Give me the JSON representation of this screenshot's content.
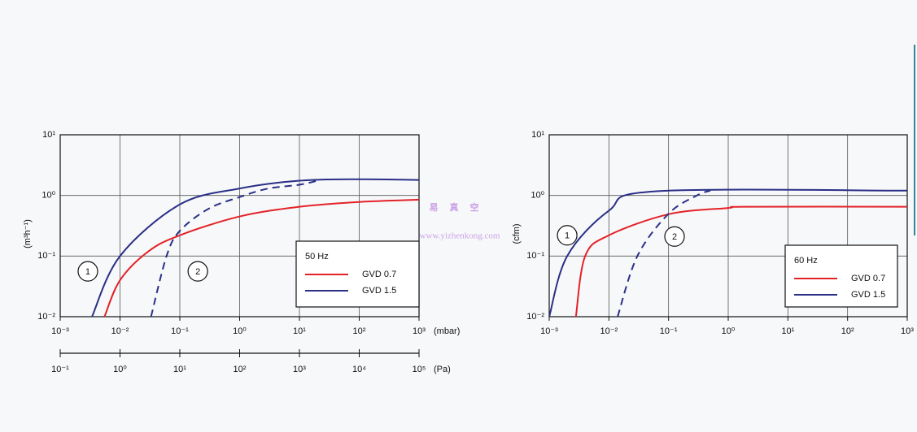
{
  "chart_data": [
    {
      "type": "line",
      "xscale": "log",
      "yscale": "log",
      "grid": true,
      "xlabel": "(mbar)",
      "ylabel": "(m³h⁻¹)",
      "xlim": [
        0.001,
        1000
      ],
      "xticks": [
        {
          "value": 0.001,
          "label": "10⁻³"
        },
        {
          "value": 0.01,
          "label": "10⁻²"
        },
        {
          "value": 0.1,
          "label": "10⁻¹"
        },
        {
          "value": 1,
          "label": "10⁰"
        },
        {
          "value": 10,
          "label": "10¹"
        },
        {
          "value": 100,
          "label": "10²"
        },
        {
          "value": 1000,
          "label": "10³"
        }
      ],
      "ylim": [
        0.01,
        10
      ],
      "yticks": [
        {
          "value": 0.01,
          "label": "10⁻²"
        },
        {
          "value": 0.1,
          "label": "10⁻¹"
        },
        {
          "value": 1,
          "label": "10⁰"
        },
        {
          "value": 10,
          "label": "10¹"
        }
      ],
      "x2label": "(Pa)",
      "x2lim": [
        0.1,
        100000
      ],
      "x2ticks": [
        {
          "value": 0.1,
          "label": "10⁻¹"
        },
        {
          "value": 1,
          "label": "10⁰"
        },
        {
          "value": 10,
          "label": "10¹"
        },
        {
          "value": 100,
          "label": "10²"
        },
        {
          "value": 1000,
          "label": "10³"
        },
        {
          "value": 10000,
          "label": "10⁴"
        },
        {
          "value": 100000,
          "label": "10⁵"
        }
      ],
      "legend_title": "50 Hz",
      "series": [
        {
          "name": "GVD 0.7",
          "color": "#e32228",
          "x": [
            0.0055,
            0.01,
            0.03,
            0.1,
            1,
            10,
            100,
            1000
          ],
          "values": [
            0.01,
            0.04,
            0.12,
            0.22,
            0.45,
            0.65,
            0.78,
            0.85
          ]
        },
        {
          "name": "GVD 1.5",
          "color": "#2a2f86",
          "x": [
            0.0034,
            0.01,
            0.1,
            1,
            10,
            100,
            1000
          ],
          "values": [
            0.01,
            0.1,
            0.71,
            1.3,
            1.75,
            1.85,
            1.8
          ]
        },
        {
          "dashed": true,
          "color": "#2a2f86",
          "x": [
            0.033,
            0.06,
            0.1,
            0.3,
            1,
            3,
            10,
            20
          ],
          "values": [
            0.01,
            0.1,
            0.26,
            0.6,
            0.94,
            1.3,
            1.5,
            1.75
          ]
        }
      ],
      "annotations": [
        {
          "text": "1",
          "x": 0.0029,
          "y": 0.056
        },
        {
          "text": "2",
          "x": 0.2,
          "y": 0.056
        }
      ]
    },
    {
      "type": "line",
      "xscale": "log",
      "yscale": "log",
      "grid": true,
      "ylabel": "(cfm)",
      "xlim": [
        0.001,
        1000
      ],
      "xticks": [
        {
          "value": 0.001,
          "label": "10⁻³"
        },
        {
          "value": 0.01,
          "label": "10⁻²"
        },
        {
          "value": 0.1,
          "label": "10⁻¹"
        },
        {
          "value": 1,
          "label": "10⁰"
        },
        {
          "value": 10,
          "label": "10¹"
        },
        {
          "value": 100,
          "label": "10²"
        },
        {
          "value": 1000,
          "label": "10³"
        }
      ],
      "ylim": [
        0.01,
        10
      ],
      "yticks": [
        {
          "value": 0.01,
          "label": "10⁻²"
        },
        {
          "value": 0.1,
          "label": "10⁻¹"
        },
        {
          "value": 1,
          "label": "10⁰"
        },
        {
          "value": 10,
          "label": "10¹"
        }
      ],
      "legend_title": "60 Hz",
      "series": [
        {
          "name": "GVD 0.7",
          "color": "#e32228",
          "x": [
            0.0028,
            0.004,
            0.01,
            0.1,
            1,
            2,
            1000
          ],
          "values": [
            0.01,
            0.1,
            0.22,
            0.49,
            0.62,
            0.65,
            0.65
          ]
        },
        {
          "name": "GVD 1.5",
          "color": "#2a2f86",
          "x": [
            0.001,
            0.002,
            0.01,
            0.06,
            1000
          ],
          "values": [
            0.01,
            0.1,
            0.56,
            1.17,
            1.2
          ]
        },
        {
          "dashed": true,
          "color": "#2a2f86",
          "x": [
            0.014,
            0.03,
            0.1,
            0.3,
            0.5
          ],
          "values": [
            0.01,
            0.1,
            0.5,
            1.0,
            1.2
          ]
        }
      ],
      "annotations": [
        {
          "text": "1",
          "x": 0.002,
          "y": 0.22
        },
        {
          "text": "2",
          "x": 0.126,
          "y": 0.21
        }
      ]
    }
  ],
  "watermark": {
    "title": "易真空",
    "url": "www.yizhenkong.com"
  }
}
